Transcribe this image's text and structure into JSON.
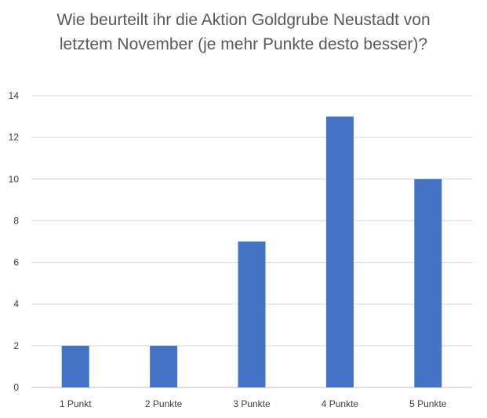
{
  "chart_data": {
    "type": "bar",
    "title": "Wie beurteilt ihr die Aktion Goldgrube Neustadt von letztem November (je mehr Punkte desto besser)?",
    "categories": [
      "1 Punkt",
      "2 Punkte",
      "3 Punkte",
      "4 Punkte",
      "5 Punkte"
    ],
    "values": [
      2,
      2,
      7,
      13,
      10
    ],
    "xlabel": "",
    "ylabel": "",
    "ylim": [
      0,
      14
    ],
    "yticks": [
      0,
      2,
      4,
      6,
      8,
      10,
      12,
      14
    ],
    "grid": true,
    "legend": "none",
    "colors": {
      "bar": "#4472C4",
      "grid": "#D9D9D9",
      "axis": "#BFBFBF",
      "title": "#595959",
      "labels": "#404040"
    }
  }
}
